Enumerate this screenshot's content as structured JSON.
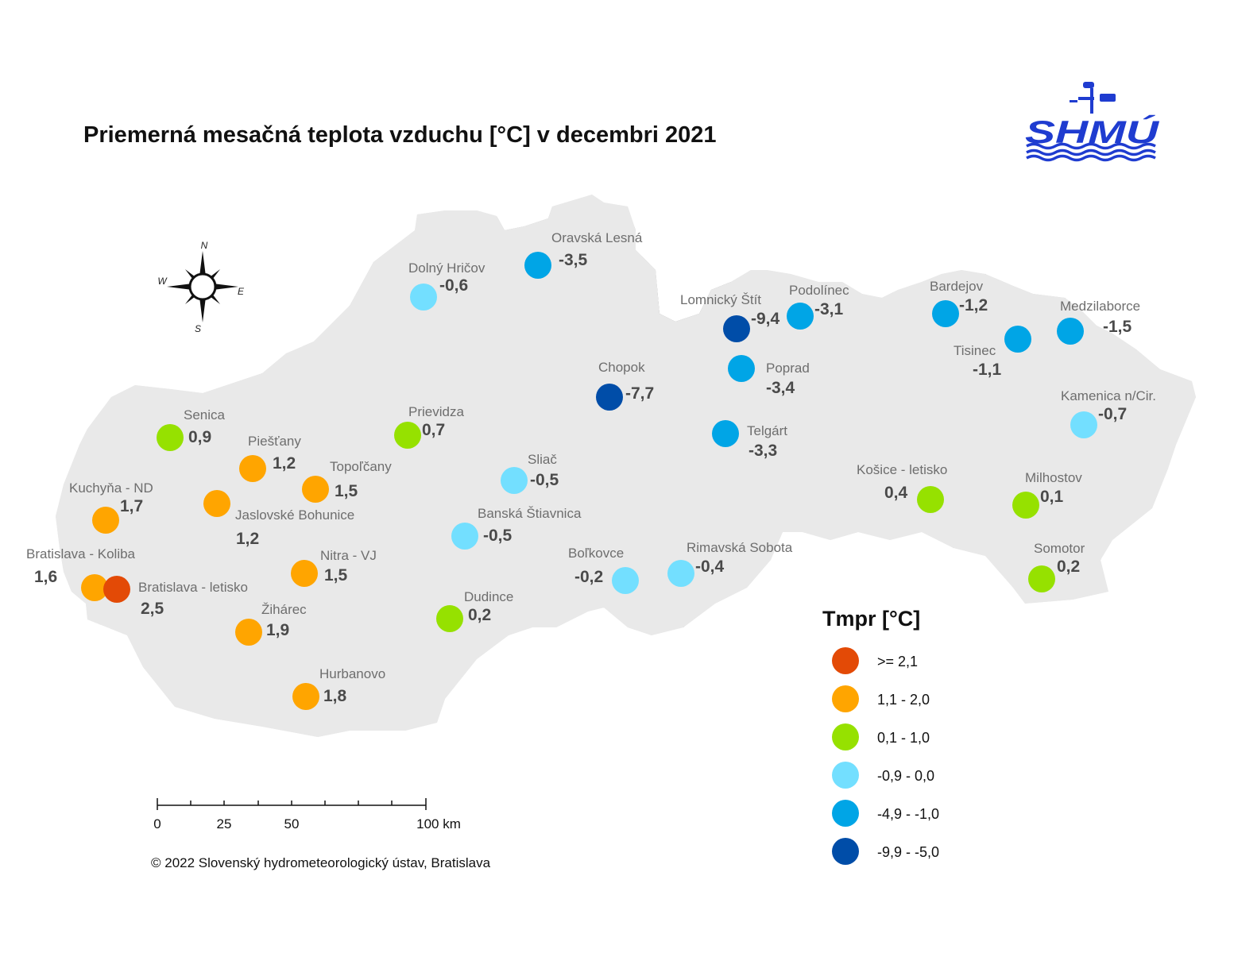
{
  "title": "Priemerná mesačná teplota vzduchu [°C] v decembri 2021",
  "logo": {
    "text": "SHMÚ",
    "color": "#1f3cd0"
  },
  "compass": {
    "n": "N",
    "s": "S",
    "e": "E",
    "w": "W"
  },
  "stations": [
    {
      "name": "Oravská Lesná",
      "value": "-3,5",
      "class": "c4"
    },
    {
      "name": "Dolný Hričov",
      "value": "-0,6",
      "class": "c3"
    },
    {
      "name": "Lomnický Štít",
      "value": "-9,4",
      "class": "c5"
    },
    {
      "name": "Podolínec",
      "value": "-3,1",
      "class": "c4"
    },
    {
      "name": "Bardejov",
      "value": "-1,2",
      "class": "c4"
    },
    {
      "name": "Medzilaborce",
      "value": "-1,5",
      "class": "c4"
    },
    {
      "name": "Tisinec",
      "value": "-1,1",
      "class": "c4"
    },
    {
      "name": "Poprad",
      "value": "-3,4",
      "class": "c4"
    },
    {
      "name": "Chopok",
      "value": "-7,7",
      "class": "c5"
    },
    {
      "name": "Kamenica n/Cir.",
      "value": "-0,7",
      "class": "c3"
    },
    {
      "name": "Senica",
      "value": "0,9",
      "class": "c2"
    },
    {
      "name": "Prievidza",
      "value": "0,7",
      "class": "c2"
    },
    {
      "name": "Telgárt",
      "value": "-3,3",
      "class": "c4"
    },
    {
      "name": "Piešťany",
      "value": "1,2",
      "class": "c1"
    },
    {
      "name": "Sliač",
      "value": "-0,5",
      "class": "c3"
    },
    {
      "name": "Topoľčany",
      "value": "1,5",
      "class": "c1"
    },
    {
      "name": "Kuchyňa - ND",
      "value": "1,7",
      "class": "c1"
    },
    {
      "name": "Košice - letisko",
      "value": "0,4",
      "class": "c2"
    },
    {
      "name": "Milhostov",
      "value": "0,1",
      "class": "c2"
    },
    {
      "name": "Jaslovské Bohunice",
      "value": "1,2",
      "class": "c1"
    },
    {
      "name": "Banská Štiavnica",
      "value": "-0,5",
      "class": "c3"
    },
    {
      "name": "Bratislava - Koliba",
      "value": "1,6",
      "class": "c1"
    },
    {
      "name": "Somotor",
      "value": "0,2",
      "class": "c2"
    },
    {
      "name": "Boľkovce",
      "value": "-0,2",
      "class": "c3"
    },
    {
      "name": "Rimavská Sobota",
      "value": "-0,4",
      "class": "c3"
    },
    {
      "name": "Nitra - VJ",
      "value": "1,5",
      "class": "c1"
    },
    {
      "name": "Bratislava - letisko",
      "value": "2,5",
      "class": "c0"
    },
    {
      "name": "Dudince",
      "value": "0,2",
      "class": "c2"
    },
    {
      "name": "Žihárec",
      "value": "1,9",
      "class": "c1"
    },
    {
      "name": "Hurbanovo",
      "value": "1,8",
      "class": "c1"
    }
  ],
  "legend": {
    "title": "Tmpr [°C]",
    "items": [
      {
        "label": ">= 2,1",
        "color": "#e34a06"
      },
      {
        "label": "1,1 - 2,0",
        "color": "#ffa500"
      },
      {
        "label": "0,1 - 1,0",
        "color": "#96e100"
      },
      {
        "label": "-0,9 - 0,0",
        "color": "#73dfff"
      },
      {
        "label": "-4,9 - -1,0",
        "color": "#00a5e6"
      },
      {
        "label": "-9,9 - -5,0",
        "color": "#004da8"
      }
    ]
  },
  "scalebar": {
    "labels": [
      "0",
      "25",
      "50",
      "100 km"
    ]
  },
  "copyright": "© 2022 Slovenský hydrometeorologický ústav, Bratislava"
}
